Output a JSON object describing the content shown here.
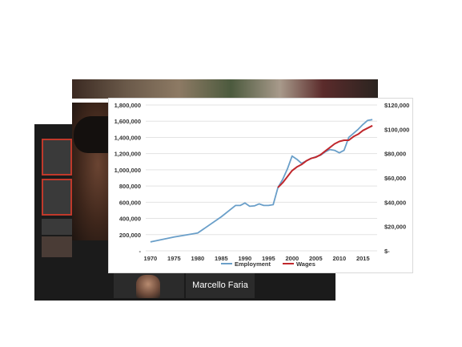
{
  "video_call": {
    "participant_name": "Marcello Faria"
  },
  "chart_data": {
    "type": "line",
    "x": [
      1970,
      1975,
      1980,
      1985,
      1988,
      1989,
      1990,
      1991,
      1992,
      1993,
      1994,
      1995,
      1996,
      1997,
      1998,
      1999,
      2000,
      2001,
      2002,
      2003,
      2004,
      2005,
      2006,
      2007,
      2008,
      2009,
      2010,
      2011,
      2012,
      2013,
      2014,
      2015,
      2016,
      2017
    ],
    "x_ticks": [
      "1970",
      "1975",
      "1980",
      "1985",
      "1990",
      "1995",
      "2000",
      "2005",
      "2010",
      "2015"
    ],
    "left_ticks": [
      "-",
      "200,000",
      "400,000",
      "600,000",
      "800,000",
      "1,000,000",
      "1,200,000",
      "1,400,000",
      "1,600,000",
      "1,800,000"
    ],
    "right_ticks": [
      "$-",
      "$20,000",
      "$40,000",
      "$60,000",
      "$80,000",
      "$100,000",
      "$120,000"
    ],
    "ylim_left": [
      0,
      1800000
    ],
    "ylim_right": [
      0,
      120000
    ],
    "series": [
      {
        "name": "Employment",
        "axis": "left",
        "color": "#6a9fc9",
        "x": [
          1970,
          1975,
          1980,
          1985,
          1988,
          1989,
          1990,
          1991,
          1992,
          1993,
          1994,
          1995,
          1996,
          1997,
          1998,
          1999,
          2000,
          2001,
          2002,
          2003,
          2004,
          2005,
          2006,
          2007,
          2008,
          2009,
          2010,
          2011,
          2012,
          2013,
          2014,
          2015,
          2016,
          2017
        ],
        "values": [
          110000,
          170000,
          220000,
          420000,
          560000,
          560000,
          590000,
          550000,
          555000,
          580000,
          560000,
          560000,
          570000,
          780000,
          880000,
          1010000,
          1170000,
          1130000,
          1080000,
          1110000,
          1140000,
          1160000,
          1180000,
          1220000,
          1250000,
          1240000,
          1210000,
          1240000,
          1400000,
          1450000,
          1500000,
          1560000,
          1610000,
          1620000
        ]
      },
      {
        "name": "Wages",
        "axis": "right",
        "color": "#c0282d",
        "x": [
          1997,
          1998,
          1999,
          2000,
          2001,
          2002,
          2003,
          2004,
          2005,
          2006,
          2007,
          2008,
          2009,
          2010,
          2011,
          2012,
          2013,
          2014,
          2015,
          2016,
          2017
        ],
        "values": [
          52000,
          56000,
          61000,
          66000,
          69000,
          71000,
          74000,
          76000,
          77000,
          79000,
          82000,
          85000,
          88000,
          90000,
          91000,
          91000,
          94000,
          96000,
          99000,
          101000,
          103000
        ]
      }
    ],
    "legend_position": "bottom",
    "grid": true
  }
}
